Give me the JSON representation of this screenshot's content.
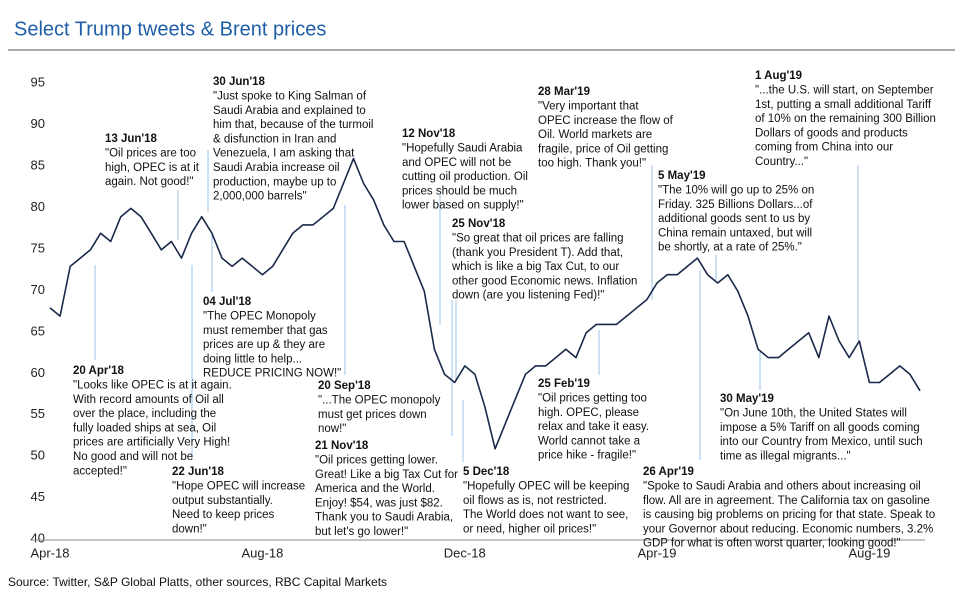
{
  "chart_data": {
    "type": "line",
    "title": "Select Trump tweets & Brent prices",
    "source": "Source: Twitter, S&P Global Platts, other sources, RBC Capital Markets",
    "categories": [
      "Apr-18",
      null,
      null,
      null,
      null,
      null,
      null,
      null,
      null,
      null,
      null,
      null,
      null,
      null,
      null,
      null,
      null,
      null,
      null,
      null,
      null,
      "Aug-18",
      null,
      null,
      null,
      null,
      null,
      null,
      null,
      null,
      null,
      null,
      null,
      null,
      null,
      null,
      null,
      null,
      null,
      null,
      null,
      "Dec-18",
      null,
      null,
      null,
      null,
      null,
      null,
      null,
      null,
      null,
      null,
      null,
      null,
      null,
      null,
      null,
      null,
      null,
      null,
      "Apr-19",
      null,
      null,
      null,
      null,
      null,
      null,
      null,
      null,
      null,
      null,
      null,
      null,
      null,
      null,
      null,
      null,
      null,
      null,
      null,
      null,
      "Aug-19",
      null,
      null,
      null,
      null,
      null
    ],
    "series": [
      {
        "name": "Brent",
        "color": "#1b2a4a",
        "values": [
          68,
          67,
          73,
          74,
          75,
          77,
          76,
          79,
          80,
          79,
          77,
          75,
          76,
          74,
          77,
          79,
          77,
          74,
          73,
          74,
          73,
          72,
          73,
          75,
          77,
          78,
          78,
          79,
          80,
          83,
          86,
          83,
          81,
          78,
          76,
          76,
          73,
          70,
          63,
          60,
          59,
          61,
          60,
          56,
          51,
          54,
          57,
          60,
          61,
          61,
          62,
          63,
          62,
          65,
          66,
          66,
          66,
          67,
          68,
          69,
          71,
          72,
          72,
          73,
          74,
          72,
          71,
          72,
          70,
          67,
          63,
          62,
          62,
          63,
          64,
          65,
          62,
          67,
          64,
          62,
          64,
          59,
          59,
          60,
          61,
          60,
          58
        ]
      }
    ],
    "ylim": [
      40,
      95
    ],
    "yticks": [
      40,
      45,
      50,
      55,
      60,
      65,
      70,
      75,
      80,
      85,
      90,
      95
    ],
    "annotations": [
      {
        "date": "20 Apr'18",
        "lines": [
          "\"Looks like OPEC is at it again.",
          "With record amounts of Oil all",
          "over the place, including the",
          "fully loaded ships at sea, Oil",
          "prices are artificially Very High!",
          "No good and will not be",
          "accepted!\""
        ]
      },
      {
        "date": "13 Jun'18",
        "lines": [
          "\"Oil prices are too",
          "high, OPEC is at it",
          "again. Not good!\""
        ]
      },
      {
        "date": "22 Jun'18",
        "lines": [
          "\"Hope OPEC will increase",
          "output substantially.",
          "Need to keep prices",
          "down!\""
        ]
      },
      {
        "date": "30 Jun'18",
        "lines": [
          "\"Just spoke to King Salman of",
          "Saudi Arabia and explained to",
          "him that, because of the turmoil",
          "& disfunction in Iran and",
          "Venezuela, I am asking that",
          "Saudi Arabia increase oil",
          "production, maybe up to",
          "2,000,000 barrels\""
        ]
      },
      {
        "date": "04 Jul'18",
        "lines": [
          "\"The OPEC Monopoly",
          "must remember that gas",
          "prices are up & they are",
          "doing little to help...",
          "REDUCE PRICING NOW!\""
        ]
      },
      {
        "date": "20 Sep'18",
        "lines": [
          "\"...The OPEC monopoly",
          "must get prices down",
          "now!\""
        ]
      },
      {
        "date": "21 Nov'18",
        "lines": [
          "\"Oil prices getting lower.",
          "Great! Like a big Tax Cut for",
          "America and the World.",
          "Enjoy! $54, was just $82.",
          "Thank you to Saudi Arabia,",
          "but let's go lower!\""
        ]
      },
      {
        "date": "12 Nov'18",
        "lines": [
          "\"Hopefully Saudi Arabia",
          "and OPEC will not be",
          "cutting oil production. Oil",
          "prices should be much",
          "lower based on supply!\""
        ]
      },
      {
        "date": "25 Nov'18",
        "lines": [
          "\"So great that oil prices are falling",
          "(thank you President T). Add that,",
          "which is like a big Tax Cut, to our",
          "other good Economic news. Inflation",
          "down (are you listening Fed)!\""
        ]
      },
      {
        "date": "5 Dec'18",
        "lines": [
          "\"Hopefully OPEC will be keeping",
          "oil flows as is, not restricted.",
          "The World does not want to see,",
          "or need, higher oil prices!\""
        ]
      },
      {
        "date": "28 Mar'19",
        "lines": [
          "\"Very important that",
          "OPEC increase the flow of",
          "Oil. World markets are",
          "fragile, price of Oil getting",
          "too high. Thank you!\""
        ]
      },
      {
        "date": "25 Feb'19",
        "lines": [
          "\"Oil prices getting too",
          "high. OPEC, please",
          "relax and take it easy.",
          "World cannot take a",
          "price hike - fragile!\""
        ]
      },
      {
        "date": "5 May'19",
        "lines": [
          "\"The 10% will go up to 25% on",
          "Friday. 325 Billions Dollars...of",
          "additional goods sent to us by",
          "China remain untaxed, but will",
          "be shortly, at a rate of 25%.\""
        ]
      },
      {
        "date": "26 Apr'19",
        "lines": [
          "\"Spoke to Saudi Arabia and others about increasing oil",
          "flow. All are in agreement. The California tax on gasoline",
          "is causing big problems on pricing for that state. Speak to",
          "your Governor about reducing. Economic numbers, 3.2%",
          "GDP for what is often worst quarter, looking good!\""
        ]
      },
      {
        "date": "30 May'19",
        "lines": [
          "\"On June 10th, the United States will",
          "impose a 5% Tariff on all goods coming",
          "into our Country from Mexico, until such",
          "time as illegal migrants...\""
        ]
      },
      {
        "date": "1 Aug'19",
        "lines": [
          "\"...the U.S. will start, on September",
          "1st, putting a small additional Tariff",
          "of 10% on the remaining 300 Billion",
          "Dollars of goods and products",
          "coming from China into our",
          "Country...\""
        ]
      }
    ]
  }
}
